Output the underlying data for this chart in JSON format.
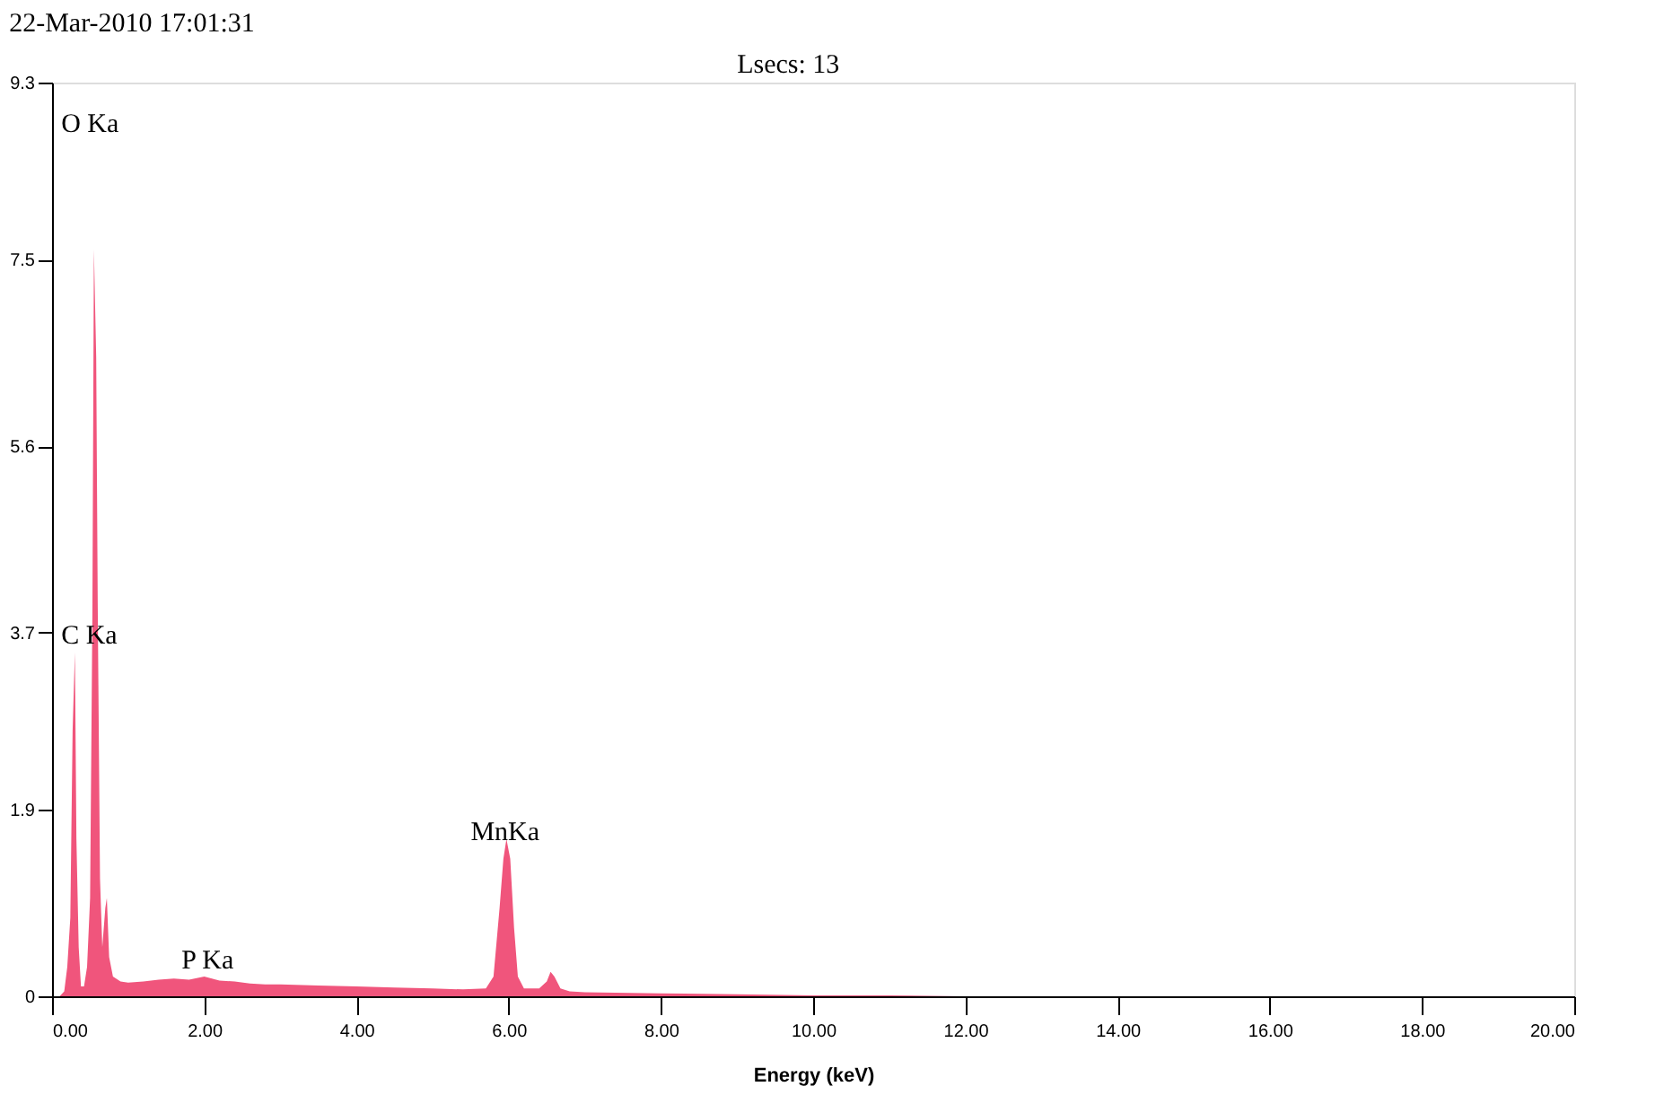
{
  "chart_data": {
    "type": "area",
    "title": "22-Mar-2010  17:01:31",
    "xlabel": "Energy (keV)",
    "x": [
      0.0,
      0.1,
      0.16,
      0.2,
      0.24,
      0.27,
      0.3,
      0.32,
      0.35,
      0.38,
      0.42,
      0.46,
      0.5,
      0.53,
      0.55,
      0.58,
      0.6,
      0.63,
      0.66,
      0.7,
      0.72,
      0.75,
      0.8,
      0.9,
      1.0,
      1.2,
      1.4,
      1.6,
      1.8,
      2.0,
      2.2,
      2.4,
      2.6,
      2.8,
      3.0,
      3.5,
      4.0,
      4.5,
      5.0,
      5.4,
      5.7,
      5.8,
      5.88,
      5.93,
      5.97,
      6.02,
      6.07,
      6.12,
      6.2,
      6.4,
      6.5,
      6.55,
      6.6,
      6.68,
      6.8,
      7.0,
      8.0,
      9.0,
      10.0,
      11.0,
      12.0,
      20.0
    ],
    "series": [
      {
        "color": "#f0557c",
        "values": [
          0,
          0,
          0.05,
          0.3,
          0.8,
          2.7,
          3.5,
          1.6,
          0.5,
          0.1,
          0.1,
          0.3,
          1.0,
          3.9,
          7.6,
          6.5,
          4.0,
          1.2,
          0.5,
          0.9,
          1.0,
          0.4,
          0.2,
          0.15,
          0.14,
          0.15,
          0.17,
          0.18,
          0.17,
          0.2,
          0.16,
          0.15,
          0.13,
          0.12,
          0.12,
          0.11,
          0.1,
          0.09,
          0.08,
          0.07,
          0.08,
          0.2,
          0.9,
          1.4,
          1.6,
          1.4,
          0.7,
          0.2,
          0.08,
          0.08,
          0.15,
          0.25,
          0.2,
          0.08,
          0.05,
          0.04,
          0.03,
          0.02,
          0.01,
          0.01,
          0,
          0
        ]
      }
    ],
    "xlim": [
      0,
      20
    ],
    "xticks": [
      {
        "value": 0,
        "label": "0.00"
      },
      {
        "value": 2,
        "label": "2.00"
      },
      {
        "value": 4,
        "label": "4.00"
      },
      {
        "value": 6,
        "label": "6.00"
      },
      {
        "value": 8,
        "label": "8.00"
      },
      {
        "value": 10,
        "label": "10.00"
      },
      {
        "value": 12,
        "label": "12.00"
      },
      {
        "value": 14,
        "label": "14.00"
      },
      {
        "value": 16,
        "label": "16.00"
      },
      {
        "value": 18,
        "label": "18.00"
      },
      {
        "value": 20,
        "label": "20.00"
      }
    ],
    "ylim": [
      0,
      9.3
    ],
    "yticks": [
      0,
      1.9,
      3.7,
      5.6,
      7.5,
      9.3
    ],
    "grid": false,
    "annotations": [
      "Lsecs: 13",
      "O Ka",
      "C Ka",
      "P Ka",
      "MnKa"
    ]
  }
}
